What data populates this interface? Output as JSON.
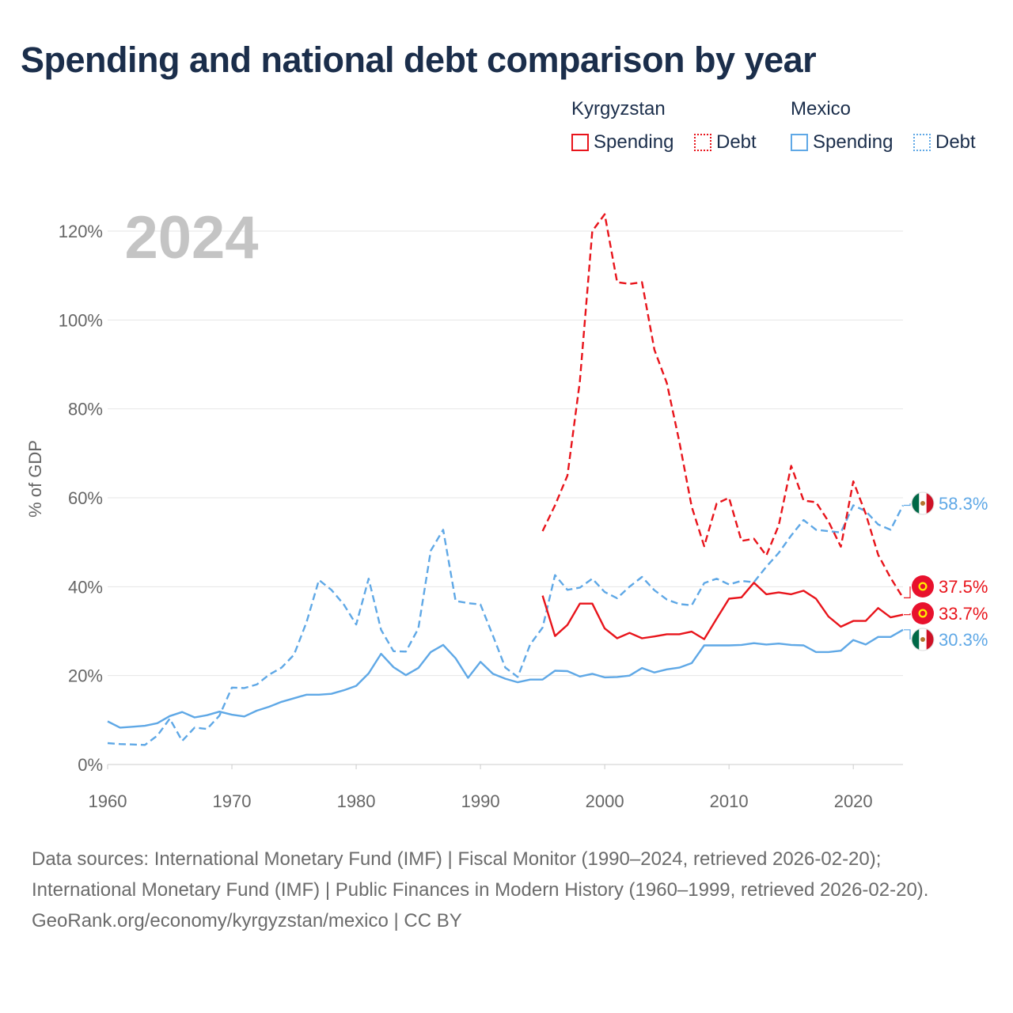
{
  "title": "Spending and national debt comparison by year",
  "legend": {
    "kyrgyzstan": {
      "name": "Kyrgyzstan",
      "spending": "Spending",
      "debt": "Debt"
    },
    "mexico": {
      "name": "Mexico",
      "spending": "Spending",
      "debt": "Debt"
    }
  },
  "colors": {
    "kyrgyzstan": "#e8141b",
    "mexico": "#5fa8e6",
    "grid": "#e6e6e6",
    "year_watermark": "#c4c4c4"
  },
  "chart_data": {
    "type": "line",
    "ylabel": "% of GDP",
    "xlabel": "",
    "year_watermark": "2024",
    "xlim": [
      1960,
      2024
    ],
    "ylim": [
      0,
      125
    ],
    "xticks": [
      1960,
      1970,
      1980,
      1990,
      2000,
      2010,
      2020
    ],
    "yticks": [
      0,
      20,
      40,
      60,
      80,
      100,
      120
    ],
    "ytick_labels": [
      "0%",
      "20%",
      "40%",
      "60%",
      "80%",
      "100%",
      "120%"
    ],
    "series": [
      {
        "name": "Mexico Debt",
        "country": "mexico",
        "style": "dashed",
        "end_label": "58.3%",
        "x": [
          1960,
          1961,
          1962,
          1963,
          1964,
          1965,
          1966,
          1967,
          1968,
          1969,
          1970,
          1971,
          1972,
          1973,
          1974,
          1975,
          1976,
          1977,
          1978,
          1979,
          1980,
          1981,
          1982,
          1983,
          1984,
          1985,
          1986,
          1987,
          1988,
          1989,
          1990,
          1991,
          1992,
          1993,
          1994,
          1995,
          1996,
          1997,
          1998,
          1999,
          2000,
          2001,
          2002,
          2003,
          2004,
          2005,
          2006,
          2007,
          2008,
          2009,
          2010,
          2011,
          2012,
          2013,
          2014,
          2015,
          2016,
          2017,
          2018,
          2019,
          2020,
          2021,
          2022,
          2023,
          2024
        ],
        "values": [
          4.8,
          4.6,
          4.5,
          4.4,
          6.5,
          10.3,
          5.3,
          8.3,
          8.0,
          11.0,
          17.3,
          17.2,
          18.0,
          20.2,
          21.8,
          24.7,
          32.0,
          41.5,
          39.3,
          36.0,
          31.5,
          41.8,
          30.3,
          25.5,
          25.4,
          30.6,
          48.1,
          52.8,
          36.8,
          36.3,
          36.0,
          29.0,
          21.8,
          19.7,
          27.0,
          30.8,
          42.6,
          39.3,
          39.8,
          41.8,
          38.8,
          37.4,
          40.0,
          42.2,
          39.2,
          37.1,
          36.1,
          35.8,
          40.8,
          41.8,
          40.5,
          41.3,
          41.0,
          44.5,
          47.6,
          51.5,
          55.0,
          52.8,
          52.5,
          52.2,
          58.3,
          57.0,
          54.0,
          52.8,
          58.3
        ]
      },
      {
        "name": "Mexico Spending",
        "country": "mexico",
        "style": "solid",
        "end_label": "30.3%",
        "x": [
          1960,
          1961,
          1962,
          1963,
          1964,
          1965,
          1966,
          1967,
          1968,
          1969,
          1970,
          1971,
          1972,
          1973,
          1974,
          1975,
          1976,
          1977,
          1978,
          1979,
          1980,
          1981,
          1982,
          1983,
          1984,
          1985,
          1986,
          1987,
          1988,
          1989,
          1990,
          1991,
          1992,
          1993,
          1994,
          1995,
          1996,
          1997,
          1998,
          1999,
          2000,
          2001,
          2002,
          2003,
          2004,
          2005,
          2006,
          2007,
          2008,
          2009,
          2010,
          2011,
          2012,
          2013,
          2014,
          2015,
          2016,
          2017,
          2018,
          2019,
          2020,
          2021,
          2022,
          2023,
          2024
        ],
        "values": [
          9.7,
          8.3,
          8.5,
          8.7,
          9.3,
          10.9,
          11.8,
          10.6,
          11.1,
          11.9,
          11.2,
          10.8,
          12.1,
          13.0,
          14.1,
          14.9,
          15.7,
          15.7,
          15.9,
          16.7,
          17.7,
          20.5,
          24.9,
          21.9,
          20.1,
          21.7,
          25.3,
          26.9,
          23.9,
          19.5,
          23.1,
          20.4,
          19.3,
          18.5,
          19.1,
          19.1,
          21.1,
          21.0,
          19.8,
          20.4,
          19.6,
          19.7,
          20.0,
          21.7,
          20.7,
          21.4,
          21.8,
          22.8,
          26.8,
          26.8,
          26.8,
          26.9,
          27.3,
          27.0,
          27.2,
          26.9,
          26.8,
          25.3,
          25.3,
          25.6,
          28.0,
          27.0,
          28.7,
          28.7,
          30.3
        ]
      },
      {
        "name": "Kyrgyzstan Debt",
        "country": "kyrgyzstan",
        "style": "dashed",
        "end_label": "37.5%",
        "x": [
          1995,
          1996,
          1997,
          1998,
          1999,
          2000,
          2001,
          2002,
          2003,
          2004,
          2005,
          2006,
          2007,
          2008,
          2009,
          2010,
          2011,
          2012,
          2013,
          2014,
          2015,
          2016,
          2017,
          2018,
          2019,
          2020,
          2021,
          2022,
          2023,
          2024
        ],
        "values": [
          52.5,
          58.3,
          65.0,
          86.2,
          120.0,
          123.8,
          108.5,
          108.1,
          108.5,
          93.3,
          85.8,
          72.7,
          58.0,
          49.1,
          58.7,
          60.0,
          50.3,
          50.8,
          47.0,
          53.8,
          67.2,
          59.4,
          59.0,
          54.7,
          49.0,
          63.7,
          56.4,
          47.2,
          42.0,
          37.5
        ]
      },
      {
        "name": "Kyrgyzstan Spending",
        "country": "kyrgyzstan",
        "style": "solid",
        "end_label": "33.7%",
        "x": [
          1995,
          1996,
          1997,
          1998,
          1999,
          2000,
          2001,
          2002,
          2003,
          2004,
          2005,
          2006,
          2007,
          2008,
          2009,
          2010,
          2011,
          2012,
          2013,
          2014,
          2015,
          2016,
          2017,
          2018,
          2019,
          2020,
          2021,
          2022,
          2023,
          2024
        ],
        "values": [
          38.0,
          28.9,
          31.4,
          36.2,
          36.2,
          30.6,
          28.4,
          29.6,
          28.4,
          28.8,
          29.3,
          29.3,
          29.9,
          28.2,
          32.8,
          37.3,
          37.6,
          40.9,
          38.3,
          38.7,
          38.3,
          39.1,
          37.3,
          33.3,
          31.0,
          32.3,
          32.3,
          35.2,
          33.1,
          33.7
        ]
      }
    ]
  },
  "footer": {
    "sources": "Data sources: International Monetary Fund (IMF) | Fiscal Monitor (1990–2024, retrieved 2026-02-20); International Monetary Fund (IMF) | Public Finances in Modern History (1960–1999, retrieved 2026-02-20).",
    "attribution": "GeoRank.org/economy/kyrgyzstan/mexico | CC BY"
  }
}
